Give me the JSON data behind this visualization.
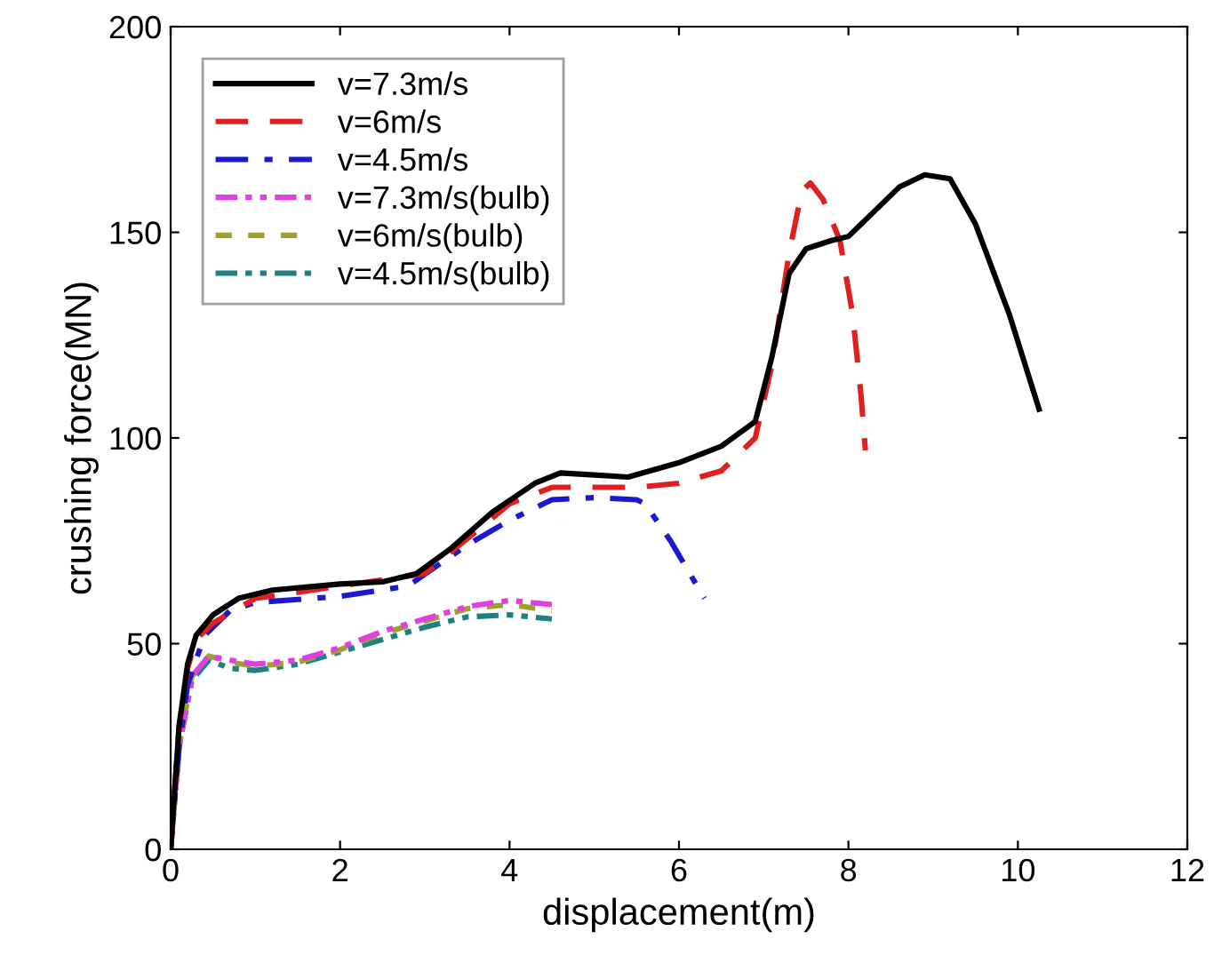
{
  "chart_data": {
    "type": "line",
    "xlabel": "displacement(m)",
    "ylabel": "crushing force(MN)",
    "xlim": [
      0,
      12
    ],
    "ylim": [
      0,
      200
    ],
    "xticks": [
      0,
      2,
      4,
      6,
      8,
      10,
      12
    ],
    "yticks": [
      0,
      50,
      100,
      150,
      200
    ],
    "grid": false,
    "legend": "top left",
    "marker": "none",
    "series": [
      {
        "name": "v=7.3m/s",
        "color": "#000000",
        "line_style": "solid",
        "x": [
          0,
          0.1,
          0.2,
          0.3,
          0.5,
          0.8,
          1.2,
          2,
          2.5,
          2.9,
          3.3,
          3.8,
          4.3,
          4.6,
          5,
          5.4,
          6,
          6.5,
          6.9,
          7.1,
          7.3,
          7.5,
          7.8,
          8,
          8.3,
          8.6,
          8.9,
          9.2,
          9.5,
          9.9,
          10.25
        ],
        "values": [
          0,
          30,
          45,
          52,
          57,
          61,
          63,
          64.5,
          65,
          67,
          73,
          82,
          89,
          91.5,
          91,
          90.5,
          94,
          98,
          104,
          120,
          140,
          146,
          148,
          149,
          155,
          161,
          164,
          163,
          152,
          130,
          107
        ]
      },
      {
        "name": "v=6m/s",
        "color": "#e02020",
        "line_style": "dashed",
        "x": [
          0,
          0.1,
          0.2,
          0.3,
          0.5,
          1,
          2,
          3,
          4,
          4.5,
          5,
          5.5,
          6,
          6.5,
          6.9,
          7.1,
          7.3,
          7.45,
          7.55,
          7.7,
          7.9,
          8.05,
          8.15,
          8.2
        ],
        "values": [
          0,
          30,
          44,
          51,
          55,
          61,
          64,
          67,
          84,
          88,
          88,
          88,
          89,
          92,
          100,
          118,
          145,
          160,
          162,
          158,
          148,
          130,
          110,
          97
        ]
      },
      {
        "name": "v=4.5m/s",
        "color": "#1a1acc",
        "line_style": "dashdot",
        "x": [
          0,
          0.1,
          0.2,
          0.4,
          0.7,
          1,
          2,
          2.8,
          3.5,
          4,
          4.5,
          5,
          5.5,
          5.6,
          5.9,
          6.1,
          6.3
        ],
        "values": [
          0,
          25,
          40,
          52,
          58,
          60,
          61.5,
          64,
          74,
          80,
          85,
          85.5,
          85,
          84,
          75,
          68,
          61
        ]
      },
      {
        "name": "v=7.3m/s(bulb)",
        "color": "#e040e0",
        "line_style": "dashdotdot",
        "x": [
          0,
          0.1,
          0.25,
          0.45,
          0.7,
          1,
          1.5,
          2,
          2.5,
          3,
          3.5,
          4,
          4.5
        ],
        "values": [
          0,
          25,
          42,
          47,
          46,
          45,
          46,
          49,
          53,
          56,
          59,
          60.5,
          59.5
        ]
      },
      {
        "name": "v=6m/s(bulb)",
        "color": "#a0a030",
        "line_style": "shortdash",
        "x": [
          0,
          0.1,
          0.25,
          0.45,
          0.7,
          1,
          1.5,
          2,
          2.5,
          3,
          3.5,
          4,
          4.5
        ],
        "values": [
          0,
          25,
          42,
          47,
          45.5,
          44.5,
          45.5,
          48.5,
          52.5,
          55.5,
          58.5,
          59.5,
          58
        ]
      },
      {
        "name": "v=4.5m/s(bulb)",
        "color": "#208080",
        "line_style": "dashdotdot",
        "x": [
          0,
          0.1,
          0.25,
          0.45,
          0.7,
          1,
          1.5,
          2,
          2.5,
          3,
          3.5,
          4,
          4.5
        ],
        "values": [
          0,
          25,
          41,
          46,
          44,
          43.5,
          45,
          48,
          51,
          54,
          56.5,
          57,
          56
        ]
      }
    ]
  }
}
